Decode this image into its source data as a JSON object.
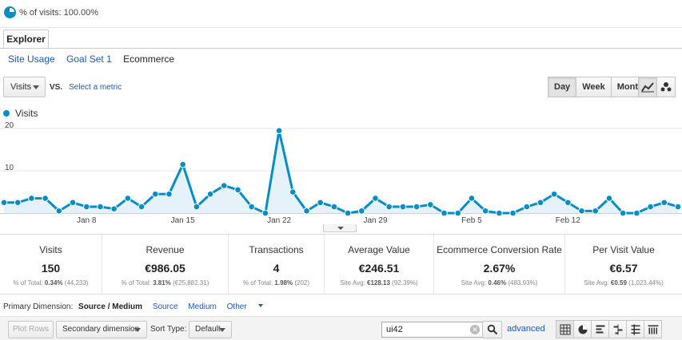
{
  "segment": {
    "pct_visits": "% of visits: 100.00%"
  },
  "tabs": {
    "explorer": "Explorer"
  },
  "subtabs": [
    {
      "label": "Site Usage"
    },
    {
      "label": "Goal Set 1"
    },
    {
      "label": "Ecommerce"
    }
  ],
  "metric": {
    "selected": "Visits",
    "vs": "VS.",
    "select_metric": "Select a metric"
  },
  "period": {
    "day": "Day",
    "week": "Week",
    "month": "Month",
    "selected": "Day"
  },
  "legend": {
    "series": "Visits"
  },
  "chart_data": {
    "type": "area",
    "series": [
      {
        "name": "Visits",
        "color": "#058dc7",
        "values": [
          2.5,
          2.5,
          3.5,
          3.5,
          0.5,
          2.5,
          1.5,
          1.5,
          1,
          3.5,
          1.5,
          4.5,
          4.5,
          11.5,
          1.5,
          4.5,
          6.5,
          5.5,
          1.5,
          0,
          19.5,
          5,
          0.5,
          2.5,
          1.5,
          0,
          0.5,
          3.5,
          1.5,
          1.5,
          1.5,
          2,
          0,
          0,
          3.5,
          0.5,
          0,
          0,
          1.5,
          2.5,
          4.5,
          2.5,
          0.5,
          0.5,
          3.5,
          0,
          0,
          1.5,
          2.5,
          1.5
        ]
      }
    ],
    "x_tick_labels": [
      "Jan 8",
      "Jan 15",
      "Jan 22",
      "Jan 29",
      "Feb 5",
      "Feb 12"
    ],
    "x_tick_index": [
      6,
      13,
      20,
      27,
      34,
      41
    ],
    "y_ticks": [
      10,
      20
    ],
    "ylim": [
      0,
      20
    ],
    "grid": true,
    "legend": "top-left"
  },
  "scorecards": [
    {
      "title": "Visits",
      "value": "150",
      "sub_label": "% of Total:",
      "sub_value": "0.34%",
      "sub_rest": "(44,233)"
    },
    {
      "title": "Revenue",
      "value": "€986.05",
      "sub_label": "% of Total:",
      "sub_value": "3.81%",
      "sub_rest": "(€25,882.31)"
    },
    {
      "title": "Transactions",
      "value": "4",
      "sub_label": "% of Total:",
      "sub_value": "1.98%",
      "sub_rest": "(202)"
    },
    {
      "title": "Average Value",
      "value": "€246.51",
      "sub_label": "Site Avg:",
      "sub_value": "€128.13",
      "sub_rest": "(92.39%)"
    },
    {
      "title": "Ecommerce Conversion Rate",
      "value": "2.67%",
      "sub_label": "Site Avg:",
      "sub_value": "0.46%",
      "sub_rest": "(483.93%)"
    },
    {
      "title": "Per Visit Value",
      "value": "€6.57",
      "sub_label": "Site Avg:",
      "sub_value": "€0.59",
      "sub_rest": "(1,023.44%)"
    }
  ],
  "primary_dimension": {
    "label": "Primary Dimension:",
    "options": [
      "Source / Medium",
      "Source",
      "Medium",
      "Other"
    ]
  },
  "table_controls": {
    "plot_rows": "Plot Rows",
    "secondary_dimension": "Secondary dimension",
    "sort_type_label": "Sort Type:",
    "sort_type_value": "Default",
    "search_value": "ui42",
    "advanced": "advanced"
  }
}
